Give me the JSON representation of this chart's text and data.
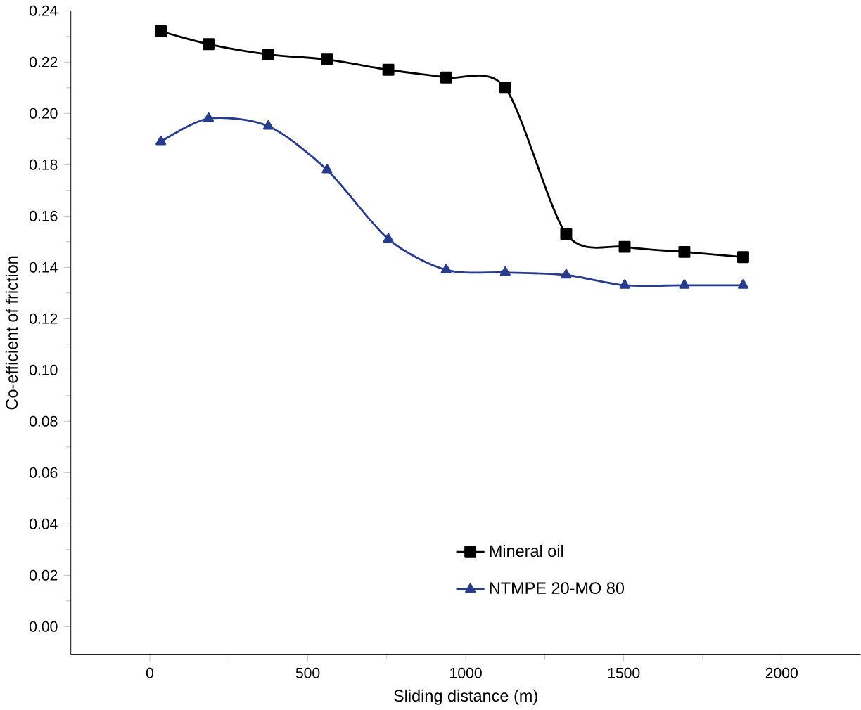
{
  "chart_data": {
    "type": "line",
    "xlabel": "Sliding distance (m)",
    "ylabel": "Co-efficient of friction",
    "xlim": [
      -250,
      2250
    ],
    "ylim": [
      -0.011,
      0.24
    ],
    "xticks": [
      0,
      500,
      1000,
      1500,
      2000
    ],
    "yticks": [
      {
        "value": 0,
        "label": "0.00"
      },
      {
        "value": 0.02,
        "label": "0.02"
      },
      {
        "value": 0.04,
        "label": "0.04"
      },
      {
        "value": 0.06,
        "label": "0.06"
      },
      {
        "value": 0.08,
        "label": "0.08"
      },
      {
        "value": 0.1,
        "label": "0.10"
      },
      {
        "value": 0.12,
        "label": "0.12"
      },
      {
        "value": 0.14,
        "label": "0.14"
      },
      {
        "value": 0.16,
        "label": "0.16"
      },
      {
        "value": 0.18,
        "label": "0.18"
      },
      {
        "value": 0.2,
        "label": "0.20"
      },
      {
        "value": 0.22,
        "label": "0.22"
      },
      {
        "value": 0.24,
        "label": "0.24"
      }
    ],
    "x": [
      35,
      186,
      375,
      561,
      755,
      938,
      1125,
      1318,
      1503,
      1692,
      1878
    ],
    "legend": "bottom right",
    "grid": false,
    "series": [
      {
        "name": "Mineral oil",
        "color": "#000000",
        "marker": "square",
        "values": [
          0.232,
          0.227,
          0.223,
          0.221,
          0.217,
          0.214,
          0.21,
          0.153,
          0.148,
          0.146,
          0.144
        ]
      },
      {
        "name": "NTMPE  20-MO 80",
        "color": "#283c8c",
        "marker": "triangle",
        "values": [
          0.189,
          0.198,
          0.195,
          0.178,
          0.151,
          0.139,
          0.138,
          0.137,
          0.133,
          0.133,
          0.133
        ]
      }
    ]
  }
}
